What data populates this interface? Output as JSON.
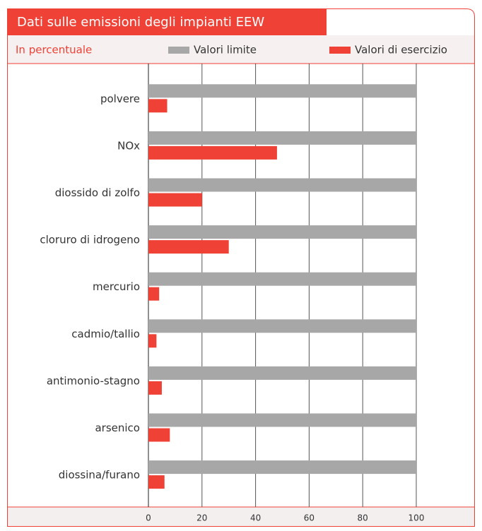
{
  "chart_data": {
    "type": "bar",
    "orientation": "horizontal",
    "title": "Dati sulle emissioni degli impianti EEW",
    "subtitle": "In percentuale",
    "categories": [
      "polvere",
      "NOx",
      "diossido di zolfo",
      "cloruro di idrogeno",
      "mercurio",
      "cadmio/tallio",
      "antimonio-stagno",
      "arsenico",
      "diossina/furano"
    ],
    "series": [
      {
        "name": "Valori limite",
        "color": "#a7a7a7",
        "values": [
          100,
          100,
          100,
          100,
          100,
          100,
          100,
          100,
          100
        ]
      },
      {
        "name": "Valori di esercizio",
        "color": "#ef4135",
        "values": [
          7,
          48,
          20,
          30,
          4,
          3,
          5,
          8,
          6
        ]
      }
    ],
    "xlim": [
      0,
      100
    ],
    "xticks": [
      0,
      20,
      40,
      60,
      80,
      100
    ],
    "grid": true
  }
}
